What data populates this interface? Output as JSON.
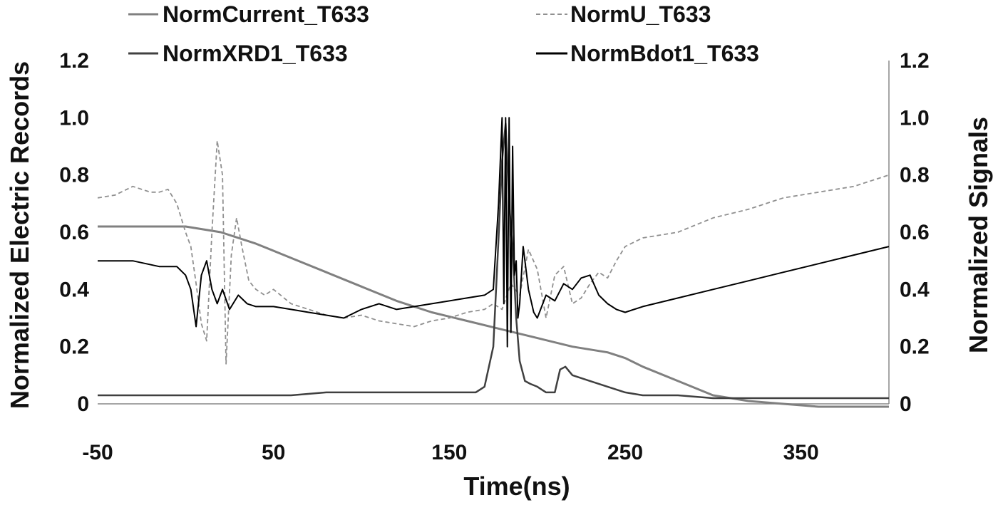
{
  "chart_data": {
    "type": "line",
    "title": "",
    "xlabel": "Time(ns)",
    "ylabel_left": "Normalized Electric Records",
    "ylabel_right": "Normalized Signals",
    "xlim": [
      -50,
      400
    ],
    "ylim_left": [
      0,
      1.2
    ],
    "ylim_right": [
      0,
      1.2
    ],
    "x_ticks": [
      -50,
      50,
      150,
      250,
      350
    ],
    "x_tick_labels": [
      "-50",
      "50",
      "150",
      "250",
      "350"
    ],
    "y_ticks": [
      0,
      0.2,
      0.4,
      0.6,
      0.8,
      1.0,
      1.2
    ],
    "y_tick_labels_left": [
      "0",
      "0.2",
      "0.4",
      "0.6",
      "0.8",
      "1.0",
      "1.2"
    ],
    "y_tick_labels_right": [
      "0",
      "0.2",
      "0.4",
      "0.6",
      "0.8",
      "1.0",
      "1.2"
    ],
    "grid": false,
    "legend_position": "top",
    "series": [
      {
        "name": "NormCurrent_T633",
        "axis": "left",
        "color": "#808080",
        "dash": "solid",
        "x": [
          -50,
          -30,
          -10,
          0,
          10,
          20,
          40,
          60,
          80,
          100,
          120,
          140,
          160,
          180,
          200,
          220,
          240,
          250,
          260,
          280,
          300,
          320,
          340,
          360,
          380,
          400
        ],
        "y": [
          0.62,
          0.62,
          0.62,
          0.62,
          0.61,
          0.6,
          0.56,
          0.51,
          0.46,
          0.41,
          0.36,
          0.32,
          0.29,
          0.26,
          0.23,
          0.2,
          0.18,
          0.16,
          0.13,
          0.08,
          0.03,
          0.01,
          0.0,
          -0.01,
          -0.01,
          -0.01
        ]
      },
      {
        "name": "NormU_T633",
        "axis": "left",
        "color": "#909090",
        "dash": "dashed",
        "x": [
          -50,
          -40,
          -30,
          -20,
          -15,
          -10,
          -5,
          0,
          3,
          6,
          9,
          12,
          15,
          18,
          21,
          23,
          26,
          29,
          32,
          36,
          40,
          45,
          50,
          60,
          70,
          80,
          90,
          100,
          110,
          120,
          130,
          140,
          150,
          160,
          170,
          175,
          180,
          185,
          190,
          195,
          200,
          205,
          210,
          215,
          220,
          225,
          230,
          235,
          240,
          245,
          250,
          260,
          280,
          300,
          320,
          340,
          360,
          380,
          400
        ],
        "y": [
          0.72,
          0.73,
          0.76,
          0.74,
          0.74,
          0.75,
          0.7,
          0.6,
          0.55,
          0.42,
          0.28,
          0.22,
          0.6,
          0.92,
          0.8,
          0.14,
          0.52,
          0.65,
          0.55,
          0.43,
          0.4,
          0.38,
          0.4,
          0.35,
          0.33,
          0.31,
          0.3,
          0.31,
          0.29,
          0.28,
          0.27,
          0.29,
          0.3,
          0.32,
          0.33,
          0.35,
          0.33,
          0.42,
          0.38,
          0.54,
          0.47,
          0.3,
          0.45,
          0.48,
          0.35,
          0.37,
          0.42,
          0.46,
          0.44,
          0.5,
          0.55,
          0.58,
          0.6,
          0.65,
          0.68,
          0.72,
          0.74,
          0.76,
          0.8
        ]
      },
      {
        "name": "NormXRD1_T633",
        "axis": "right",
        "color": "#404040",
        "dash": "solid",
        "x": [
          -50,
          -20,
          0,
          20,
          40,
          60,
          80,
          100,
          120,
          150,
          165,
          170,
          175,
          178,
          180,
          182,
          184,
          186,
          188,
          190,
          193,
          196,
          200,
          205,
          210,
          213,
          216,
          220,
          230,
          240,
          250,
          260,
          280,
          300,
          320,
          340,
          360,
          380,
          400
        ],
        "y": [
          0.03,
          0.03,
          0.03,
          0.03,
          0.03,
          0.03,
          0.04,
          0.04,
          0.04,
          0.04,
          0.04,
          0.06,
          0.2,
          0.58,
          0.85,
          0.98,
          0.7,
          0.55,
          0.3,
          0.15,
          0.08,
          0.07,
          0.06,
          0.04,
          0.04,
          0.12,
          0.13,
          0.1,
          0.08,
          0.06,
          0.04,
          0.03,
          0.03,
          0.02,
          0.02,
          0.02,
          0.02,
          0.02,
          0.02
        ]
      },
      {
        "name": "NormBdot1_T633",
        "axis": "left",
        "color": "#000000",
        "dash": "solid",
        "x": [
          -50,
          -30,
          -15,
          -5,
          0,
          3,
          6,
          9,
          12,
          15,
          18,
          21,
          25,
          30,
          35,
          40,
          50,
          60,
          70,
          80,
          90,
          100,
          110,
          120,
          140,
          160,
          170,
          175,
          178,
          180,
          181,
          182,
          183,
          184,
          185,
          186,
          187,
          188,
          189,
          190,
          192,
          195,
          198,
          200,
          205,
          210,
          215,
          220,
          225,
          230,
          235,
          240,
          245,
          250,
          260,
          280,
          300,
          320,
          340,
          360,
          380,
          400
        ],
        "y": [
          0.5,
          0.5,
          0.48,
          0.48,
          0.45,
          0.4,
          0.27,
          0.45,
          0.5,
          0.4,
          0.35,
          0.4,
          0.33,
          0.38,
          0.35,
          0.34,
          0.34,
          0.33,
          0.32,
          0.31,
          0.3,
          0.33,
          0.35,
          0.33,
          0.35,
          0.37,
          0.38,
          0.4,
          0.7,
          1.0,
          0.35,
          1.0,
          0.2,
          1.0,
          0.25,
          0.9,
          0.45,
          0.5,
          0.3,
          0.35,
          0.55,
          0.4,
          0.32,
          0.3,
          0.38,
          0.36,
          0.42,
          0.4,
          0.44,
          0.45,
          0.38,
          0.35,
          0.33,
          0.32,
          0.34,
          0.37,
          0.4,
          0.43,
          0.46,
          0.49,
          0.52,
          0.55
        ]
      }
    ]
  }
}
